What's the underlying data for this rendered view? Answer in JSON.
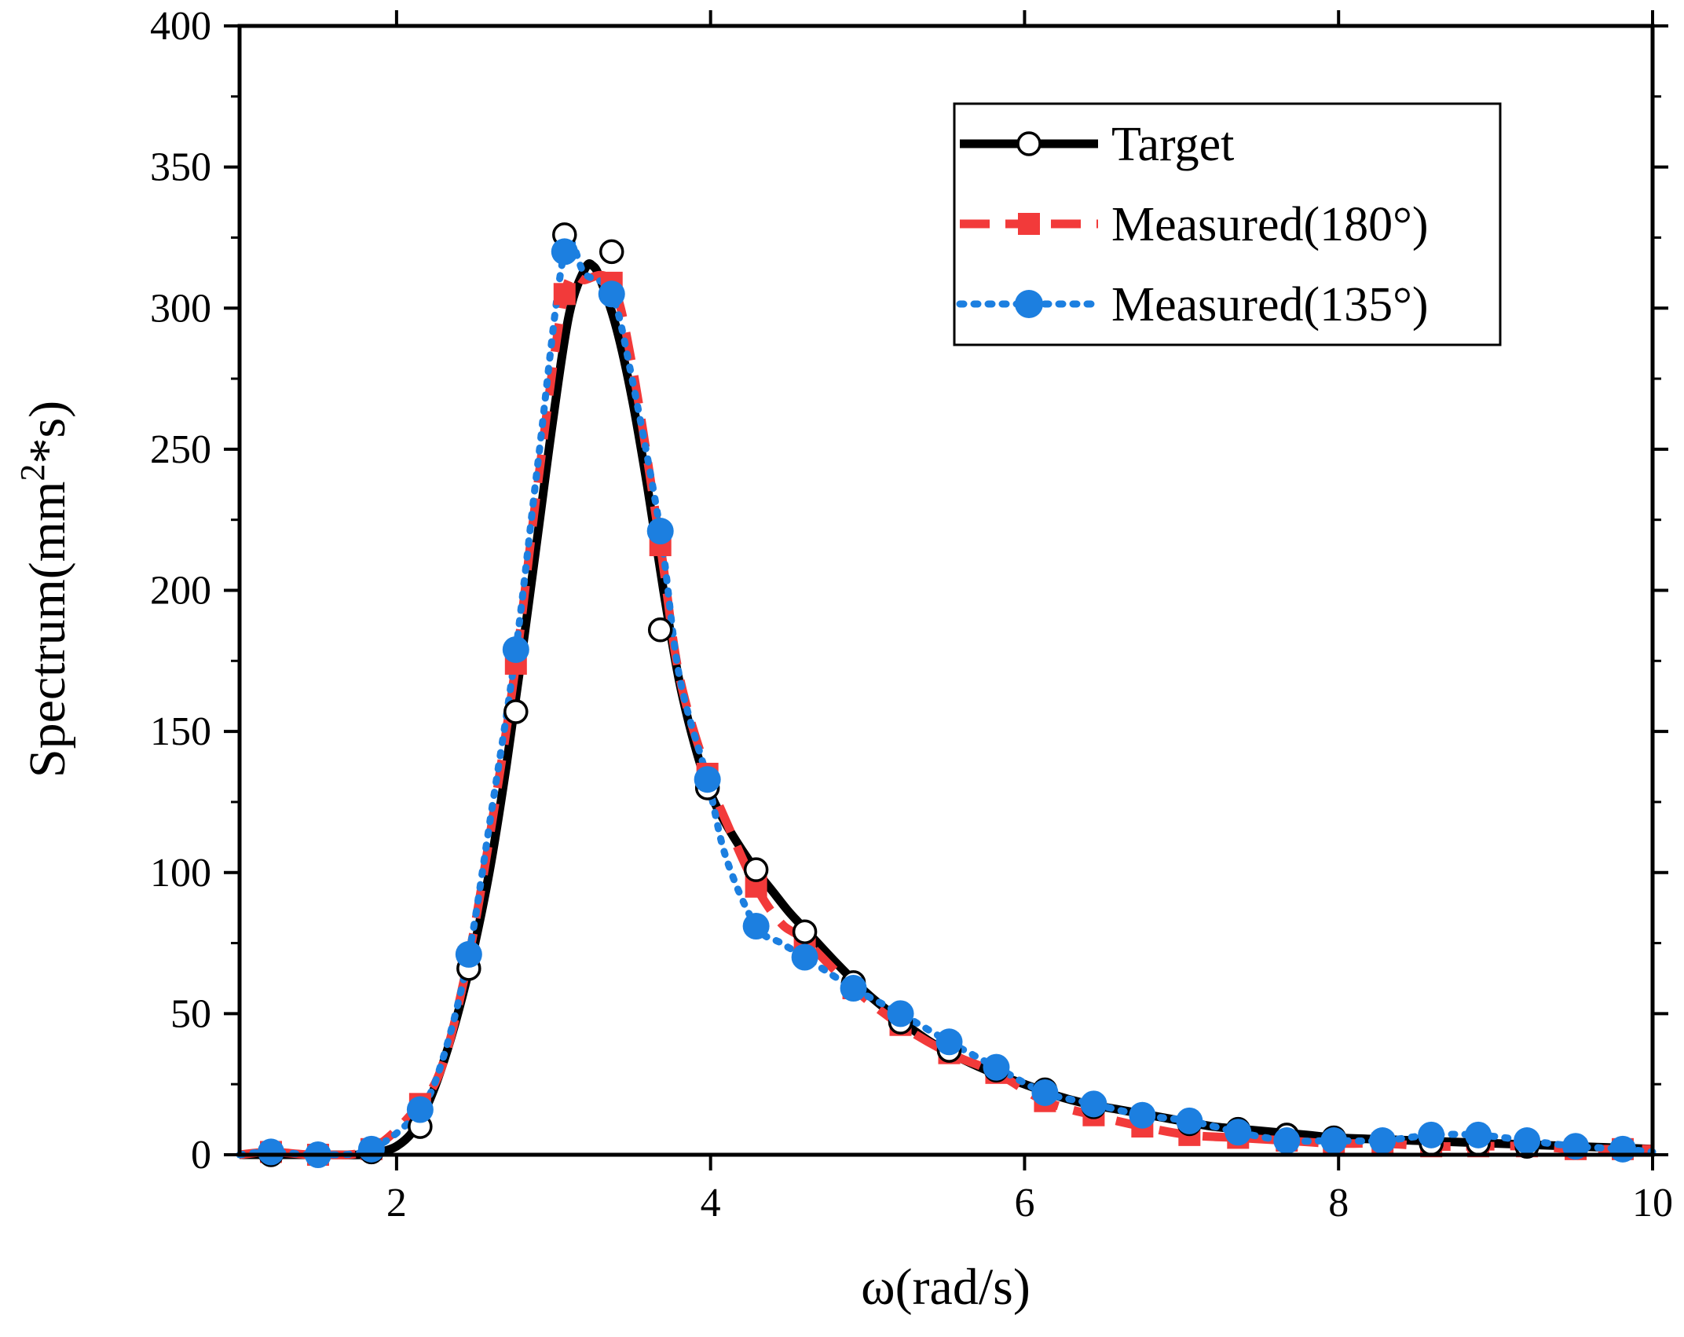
{
  "colors": {
    "target": "#000000",
    "measured_180": "#f23a3a",
    "measured_135": "#1c7fe0",
    "axis": "#000000",
    "background": "#ffffff"
  },
  "chart_data": {
    "type": "line",
    "title": "",
    "xlabel": "ω(rad/s)",
    "ylabel": "Spectrum(mm²*s)",
    "xlim": [
      1,
      10
    ],
    "ylim": [
      0,
      400
    ],
    "x_ticks": [
      2,
      4,
      6,
      8,
      10
    ],
    "x_tick_labels": [
      "2",
      "4",
      "6",
      "8",
      "10"
    ],
    "y_ticks": [
      0,
      50,
      100,
      150,
      200,
      250,
      300,
      350,
      400
    ],
    "y_tick_labels": [
      "0",
      "50",
      "100",
      "150",
      "200",
      "250",
      "300",
      "350",
      "400"
    ],
    "grid": false,
    "legend_position": "top-right",
    "series": [
      {
        "name": "Target",
        "style": "solid",
        "marker": "open-circle",
        "line_x": [
          1.0,
          1.5,
          1.8,
          1.9,
          2.0,
          2.1,
          2.2,
          2.3,
          2.4,
          2.5,
          2.6,
          2.7,
          2.8,
          2.9,
          3.0,
          3.1,
          3.2,
          3.25,
          3.3,
          3.4,
          3.5,
          3.6,
          3.7,
          3.8,
          3.9,
          4.0,
          4.1,
          4.2,
          4.3,
          4.4,
          4.5,
          4.6,
          4.8,
          5.0,
          5.2,
          5.4,
          5.6,
          5.8,
          6.0,
          6.2,
          6.4,
          6.6,
          6.8,
          7.0,
          7.2,
          7.4,
          7.6,
          7.8,
          8.0,
          8.5,
          9.0,
          9.5,
          10.0
        ],
        "line_y": [
          0,
          0,
          0,
          1,
          3,
          8,
          18,
          33,
          52,
          75,
          103,
          138,
          178,
          220,
          262,
          298,
          314,
          315,
          310,
          293,
          268,
          236,
          200,
          168,
          145,
          128,
          117,
          108,
          100,
          93,
          86,
          80,
          68,
          57,
          48,
          40,
          34,
          29,
          25,
          21,
          18,
          16,
          14,
          12,
          10,
          9,
          8,
          7,
          6,
          5,
          4,
          3,
          2
        ],
        "marker_x": [
          1.2,
          1.5,
          1.84,
          2.15,
          2.46,
          2.76,
          3.07,
          3.37,
          3.68,
          3.98,
          4.29,
          4.6,
          4.91,
          5.21,
          5.52,
          5.82,
          6.13,
          6.44,
          6.75,
          7.05,
          7.36,
          7.67,
          7.97,
          8.28,
          8.59,
          8.89,
          9.2,
          9.51,
          9.81
        ],
        "marker_y": [
          0,
          0,
          1,
          10,
          66,
          157,
          326,
          320,
          186,
          130,
          101,
          79,
          61,
          47,
          37,
          30,
          23,
          17,
          14,
          11,
          9,
          7,
          6,
          5,
          4,
          4,
          3,
          3,
          2
        ]
      },
      {
        "name": "Measured(180°)",
        "style": "dashed",
        "marker": "filled-square",
        "x": [
          1.0,
          1.2,
          1.5,
          1.84,
          2.15,
          2.3,
          2.46,
          2.6,
          2.76,
          2.9,
          3.07,
          3.2,
          3.37,
          3.5,
          3.68,
          3.8,
          3.98,
          4.1,
          4.29,
          4.45,
          4.6,
          4.91,
          5.21,
          5.52,
          5.82,
          6.13,
          6.44,
          6.75,
          7.05,
          7.36,
          7.67,
          7.97,
          8.28,
          8.59,
          8.89,
          9.2,
          9.51,
          9.81,
          10.0
        ],
        "y": [
          0,
          1,
          0,
          2,
          18,
          33,
          70,
          115,
          174,
          238,
          305,
          310,
          309,
          280,
          216,
          170,
          135,
          118,
          95,
          82,
          76,
          59,
          46,
          36,
          29,
          19,
          14,
          10,
          7,
          6,
          5,
          4,
          4,
          3,
          3,
          3,
          2,
          2,
          2
        ]
      },
      {
        "name": "Measured(135°)",
        "style": "dotted",
        "marker": "filled-circle",
        "x": [
          1.0,
          1.2,
          1.5,
          1.84,
          2.15,
          2.3,
          2.46,
          2.6,
          2.76,
          2.9,
          3.07,
          3.2,
          3.37,
          3.5,
          3.68,
          3.8,
          3.98,
          4.1,
          4.29,
          4.45,
          4.6,
          4.91,
          5.21,
          5.52,
          5.82,
          6.13,
          6.44,
          6.75,
          7.05,
          7.36,
          7.67,
          7.97,
          8.28,
          8.59,
          8.89,
          9.2,
          9.51,
          9.81,
          10.0
        ],
        "y": [
          0,
          1,
          0,
          2,
          16,
          35,
          71,
          120,
          179,
          245,
          320,
          312,
          305,
          275,
          221,
          170,
          133,
          105,
          81,
          75,
          70,
          59,
          50,
          40,
          31,
          22,
          18,
          14,
          12,
          8,
          5,
          5,
          5,
          7,
          7,
          5,
          3,
          2,
          1
        ]
      }
    ]
  }
}
